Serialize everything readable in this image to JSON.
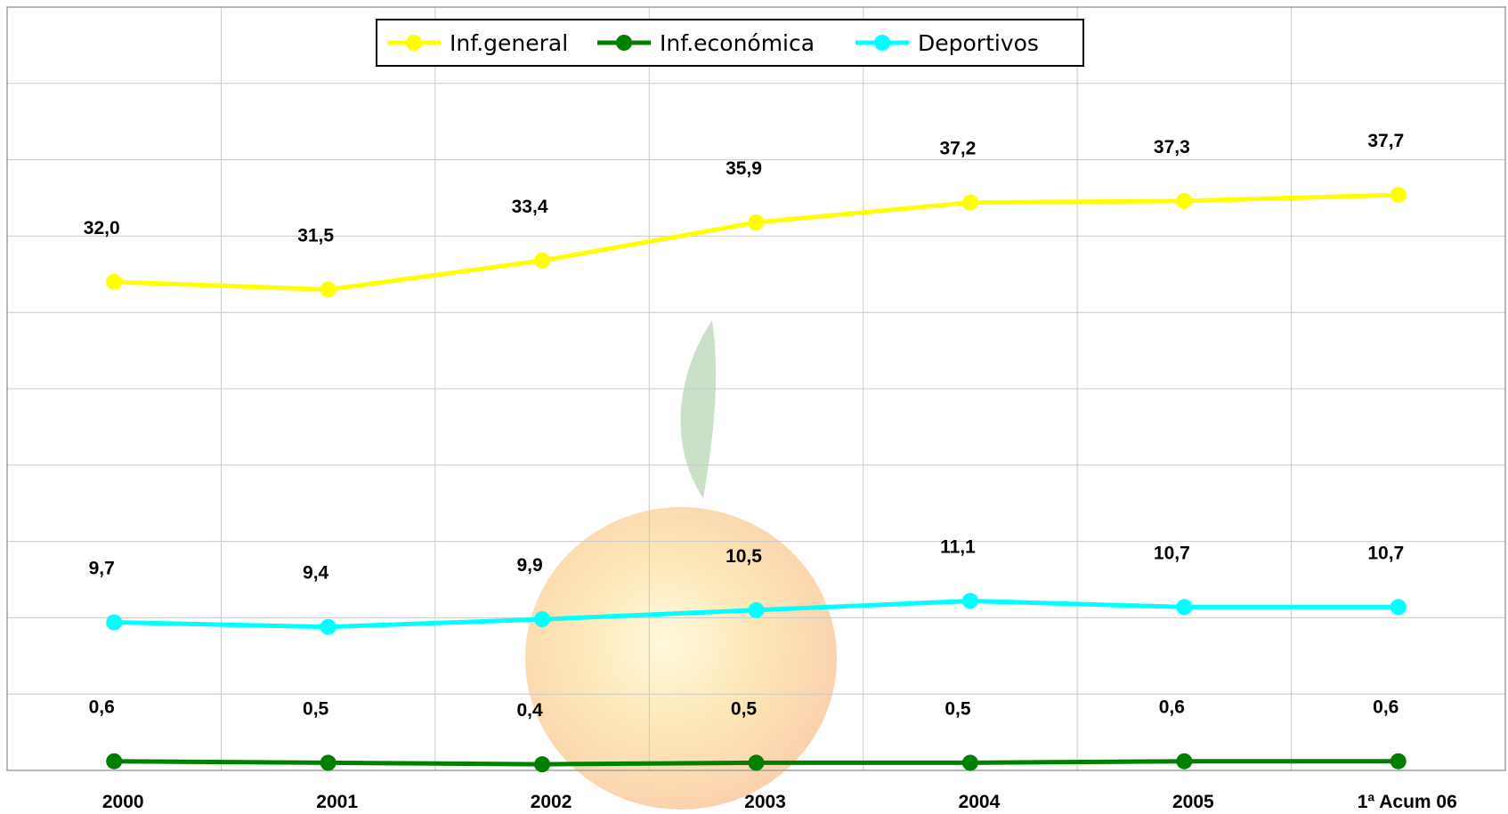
{
  "chart_data": {
    "type": "line",
    "categories": [
      "2000",
      "2001",
      "2002",
      "2003",
      "2004",
      "2005",
      "1ª Acum 06"
    ],
    "series": [
      {
        "name": "Inf.general",
        "color": "#ffff00",
        "values": [
          32.0,
          31.5,
          33.4,
          35.9,
          37.2,
          37.3,
          37.7
        ],
        "labels": [
          "32,0",
          "31,5",
          "33,4",
          "35,9",
          "37,2",
          "37,3",
          "37,7"
        ]
      },
      {
        "name": "Inf.económica",
        "color": "#008000",
        "values": [
          0.6,
          0.5,
          0.4,
          0.5,
          0.5,
          0.6,
          0.6
        ],
        "labels": [
          "0,6",
          "0,5",
          "0,4",
          "0,5",
          "0,5",
          "0,6",
          "0,6"
        ]
      },
      {
        "name": "Deportivos",
        "color": "#00ffff",
        "values": [
          9.7,
          9.4,
          9.9,
          10.5,
          11.1,
          10.7,
          10.7
        ],
        "labels": [
          "9,7",
          "9,4",
          "9,9",
          "10,5",
          "11,1",
          "10,7",
          "10,7"
        ]
      }
    ],
    "ylim": [
      0,
      50
    ],
    "grid": true,
    "legend_position": "top-center",
    "title": "",
    "xlabel": "",
    "ylabel": ""
  }
}
